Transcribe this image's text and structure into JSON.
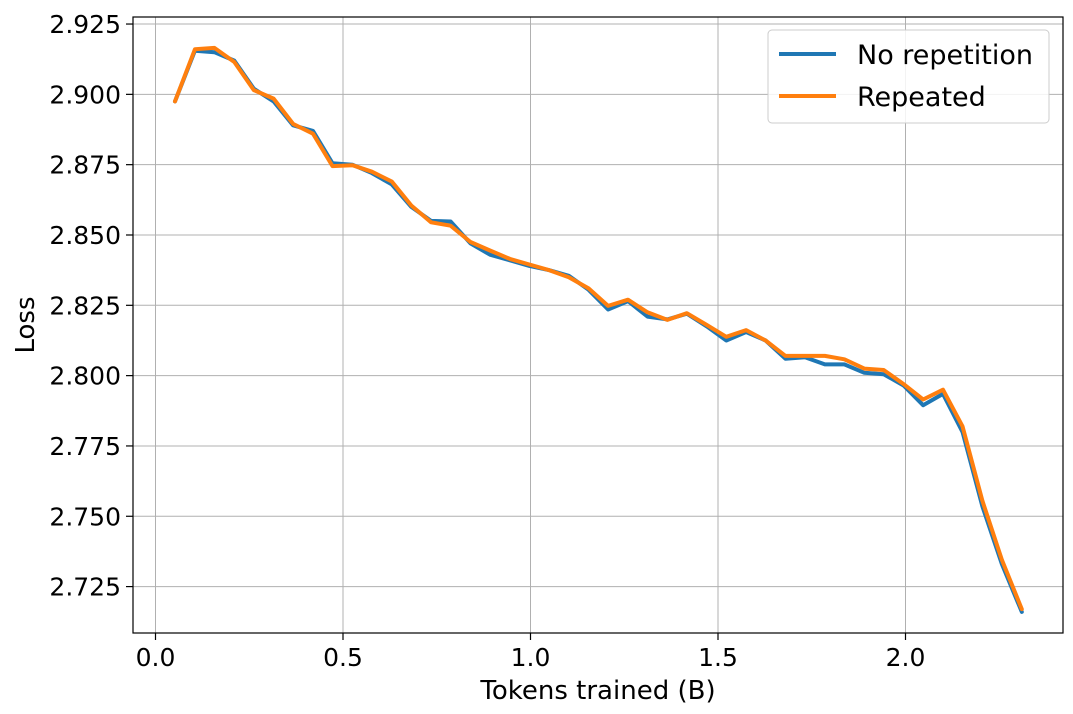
{
  "chart_data": {
    "type": "line",
    "title": "",
    "xlabel": "Tokens trained (B)",
    "ylabel": "Loss",
    "xlim": [
      -0.06,
      2.42
    ],
    "ylim": [
      2.7085,
      2.9275
    ],
    "xticks": [
      0.0,
      0.5,
      1.0,
      1.5,
      2.0
    ],
    "xtick_labels": [
      "0.0",
      "0.5",
      "1.0",
      "1.5",
      "2.0"
    ],
    "yticks": [
      2.725,
      2.75,
      2.775,
      2.8,
      2.825,
      2.85,
      2.875,
      2.9,
      2.925
    ],
    "ytick_labels": [
      "2.725",
      "2.750",
      "2.775",
      "2.800",
      "2.825",
      "2.850",
      "2.875",
      "2.900",
      "2.925"
    ],
    "grid": true,
    "legend_position": "top-right",
    "x": [
      0.052,
      0.105,
      0.157,
      0.21,
      0.262,
      0.315,
      0.367,
      0.42,
      0.472,
      0.525,
      0.577,
      0.63,
      0.682,
      0.735,
      0.787,
      0.84,
      0.892,
      0.945,
      0.997,
      1.05,
      1.102,
      1.155,
      1.207,
      1.26,
      1.312,
      1.365,
      1.417,
      1.47,
      1.522,
      1.575,
      1.627,
      1.68,
      1.732,
      1.785,
      1.837,
      1.89,
      1.942,
      1.995,
      2.047,
      2.1,
      2.152,
      2.205,
      2.257,
      2.31
    ],
    "series": [
      {
        "name": "No repetition",
        "color": "#1f77b4",
        "values": [
          2.8975,
          2.9155,
          2.915,
          2.912,
          2.902,
          2.8975,
          2.889,
          2.887,
          2.8755,
          2.875,
          2.872,
          2.868,
          2.86,
          2.855,
          2.8548,
          2.847,
          2.843,
          2.841,
          2.839,
          2.8375,
          2.8355,
          2.8305,
          2.8235,
          2.8265,
          2.821,
          2.82,
          2.822,
          2.8175,
          2.8125,
          2.8155,
          2.8125,
          2.806,
          2.8065,
          2.804,
          2.804,
          2.801,
          2.8005,
          2.7965,
          2.7895,
          2.7935,
          2.78,
          2.7535,
          2.733,
          2.716
        ]
      },
      {
        "name": "Repeated",
        "color": "#ff7f0e",
        "values": [
          2.8975,
          2.916,
          2.9165,
          2.9115,
          2.9015,
          2.8985,
          2.8895,
          2.886,
          2.8745,
          2.8748,
          2.8725,
          2.869,
          2.8605,
          2.8545,
          2.8533,
          2.8475,
          2.8445,
          2.8415,
          2.8395,
          2.8375,
          2.835,
          2.831,
          2.8248,
          2.827,
          2.8225,
          2.8198,
          2.8222,
          2.818,
          2.8138,
          2.8162,
          2.8125,
          2.807,
          2.807,
          2.807,
          2.8058,
          2.8025,
          2.802,
          2.797,
          2.7915,
          2.795,
          2.782,
          2.7555,
          2.7345,
          2.717
        ]
      }
    ]
  }
}
